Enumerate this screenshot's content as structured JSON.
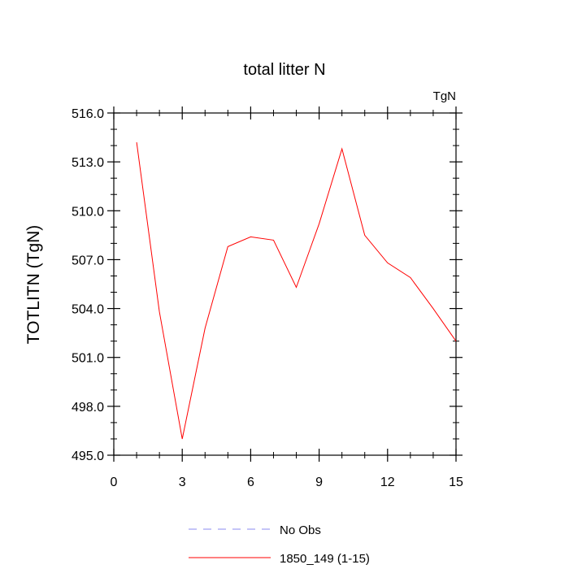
{
  "chart_data": {
    "type": "line",
    "title": "total litter N",
    "units": "TgN",
    "xlabel": "",
    "ylabel": "TOTLITN  (TgN)",
    "xlim": [
      0,
      15
    ],
    "ylim": [
      495,
      516
    ],
    "x_ticks": [
      0,
      3,
      6,
      9,
      12,
      15
    ],
    "x_tick_labels": [
      "0",
      "3",
      "6",
      "9",
      "12",
      "15"
    ],
    "y_ticks": [
      495,
      498,
      501,
      504,
      507,
      510,
      513,
      516
    ],
    "y_tick_labels": [
      "495.0",
      "498.0",
      "501.0",
      "504.0",
      "507.0",
      "510.0",
      "513.0",
      "516.0"
    ],
    "grid": false,
    "legend_position": "bottom",
    "series": [
      {
        "name": "1850_149 (1-15)",
        "color": "#ff0000",
        "dash": "solid",
        "x": [
          1,
          2,
          3,
          4,
          5,
          6,
          7,
          8,
          9,
          10,
          11,
          12,
          13,
          14,
          15
        ],
        "values": [
          514.2,
          503.8,
          496.0,
          502.8,
          507.8,
          508.4,
          508.2,
          505.3,
          509.2,
          513.8,
          508.5,
          506.8,
          505.9,
          504.0,
          502.0
        ]
      }
    ],
    "legend": [
      {
        "label": "No Obs",
        "color": "#8a8af0",
        "dash": "dashed"
      },
      {
        "label": "1850_149 (1-15)",
        "color": "#ff0000",
        "dash": "solid"
      }
    ]
  }
}
